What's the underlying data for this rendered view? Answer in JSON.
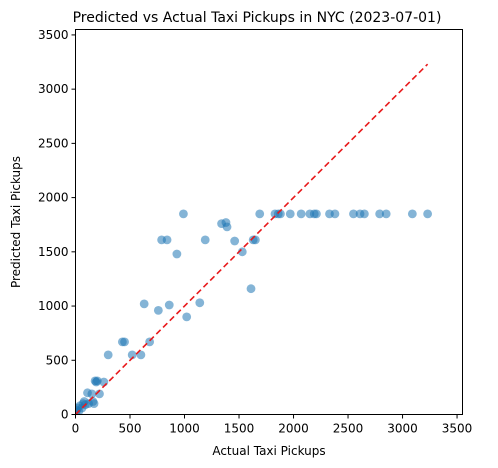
{
  "chart_data": {
    "type": "scatter",
    "title": "Predicted vs Actual Taxi Pickups in NYC (2023-07-01)",
    "xlabel": "Actual Taxi Pickups",
    "ylabel": "Predicted Taxi Pickups",
    "xlim": [
      0,
      3550
    ],
    "ylim": [
      0,
      3550
    ],
    "xticks": [
      0,
      500,
      1000,
      1500,
      2000,
      2500,
      3000,
      3500
    ],
    "yticks": [
      0,
      500,
      1000,
      1500,
      2000,
      2500,
      3000,
      3500
    ],
    "grid": false,
    "legend": "none",
    "colors": {
      "points": "#1f77b4",
      "reference_line": "#e8191b"
    },
    "reference_line": {
      "x": [
        0,
        3230
      ],
      "y": [
        0,
        3230
      ]
    },
    "points": {
      "x": [
        5,
        10,
        20,
        30,
        40,
        60,
        70,
        80,
        90,
        110,
        120,
        150,
        160,
        170,
        180,
        190,
        200,
        220,
        260,
        300,
        430,
        450,
        520,
        600,
        630,
        680,
        760,
        790,
        840,
        860,
        930,
        990,
        1020,
        1140,
        1190,
        1340,
        1380,
        1390,
        1460,
        1530,
        1610,
        1630,
        1650,
        1690,
        1830,
        1860,
        1880,
        1970,
        2070,
        2150,
        2190,
        2210,
        2330,
        2380,
        2550,
        2610,
        2650,
        2790,
        2850,
        3090,
        3230
      ],
      "y": [
        20,
        40,
        60,
        30,
        80,
        60,
        100,
        120,
        90,
        200,
        100,
        190,
        120,
        100,
        310,
        300,
        310,
        190,
        300,
        550,
        670,
        670,
        550,
        550,
        1020,
        670,
        960,
        1610,
        1610,
        1010,
        1480,
        1850,
        900,
        1030,
        1610,
        1760,
        1770,
        1730,
        1600,
        1500,
        1160,
        1610,
        1610,
        1850,
        1850,
        1850,
        1850,
        1850,
        1850,
        1850,
        1850,
        1850,
        1850,
        1850,
        1850,
        1850,
        1850,
        1850,
        1850,
        1850,
        1850
      ]
    }
  }
}
